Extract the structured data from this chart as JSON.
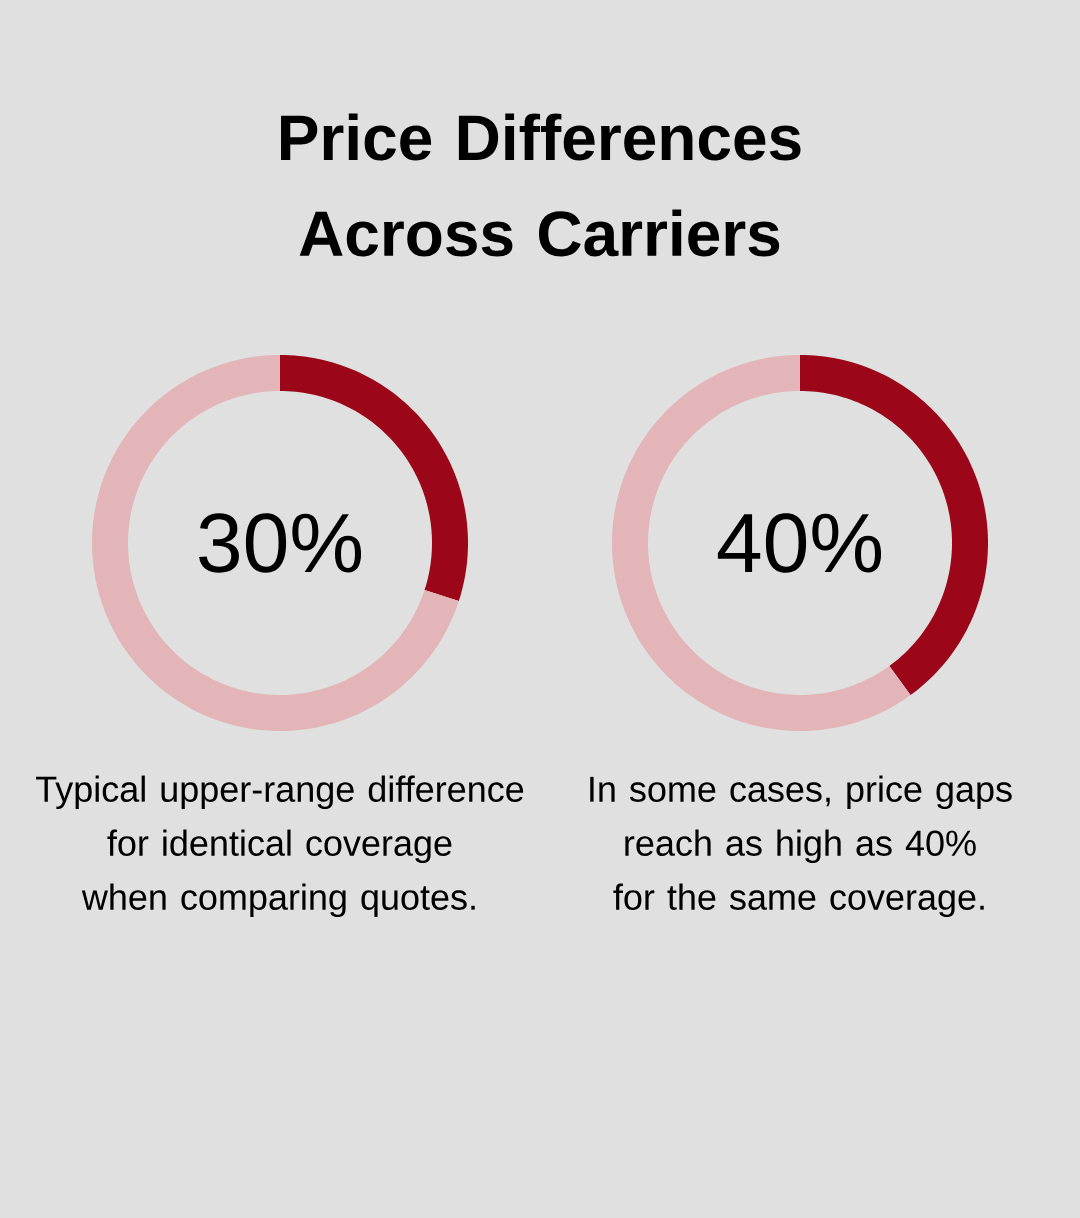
{
  "chart_data": [
    {
      "type": "donut",
      "title": "Price Differences Across Carriers",
      "categories": [
        null,
        null
      ],
      "values": [
        30,
        70
      ],
      "colors": [
        "#9b0619",
        "#e3b5b8"
      ],
      "annotations": [
        "30%",
        "Typical upper-range difference for identical coverage when comparing quotes."
      ]
    },
    {
      "type": "donut",
      "categories": [
        null,
        null
      ],
      "values": [
        40,
        60
      ],
      "colors": [
        "#9b0619",
        "#e3b5b8"
      ],
      "annotations": [
        "40%",
        "In some cases, price gaps reach as high as 40% for the same coverage."
      ]
    }
  ]
}
